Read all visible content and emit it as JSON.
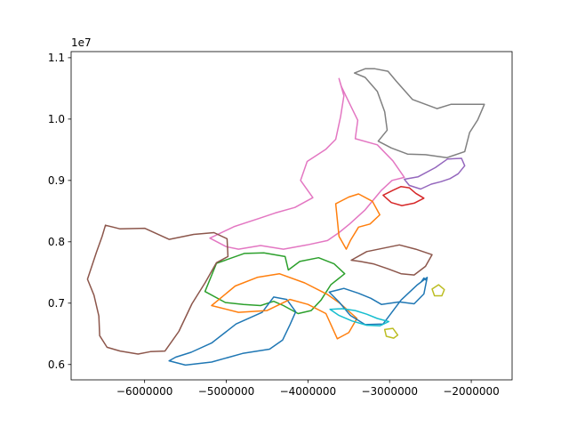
{
  "chart_data": {
    "type": "line",
    "title": "",
    "xlabel": "",
    "ylabel": "",
    "xlim": [
      -6900000,
      -1500000
    ],
    "ylim": [
      5750000,
      11100000
    ],
    "x_ticks": [
      -6000000,
      -5000000,
      -4000000,
      -3000000,
      -2000000
    ],
    "x_tick_labels": [
      "−6000000",
      "−5000000",
      "−4000000",
      "−3000000",
      "−2000000"
    ],
    "y_ticks": [
      6000000,
      7000000,
      8000000,
      9000000,
      10000000,
      11000000
    ],
    "y_tick_labels": [
      "0.6",
      "0.7",
      "0.8",
      "0.9",
      "1.0",
      "1.1"
    ],
    "y_offset_label": "1e7",
    "grid": false,
    "series": [
      {
        "color": "#808080",
        "x": [
          -3430000,
          -3300000,
          -3180000,
          -3020000,
          -2920000,
          -2820000,
          -2720000,
          -2600000,
          -2420000,
          -2250000,
          -1840000,
          -1920000,
          -2020000,
          -2080000,
          -2300000,
          -2560000,
          -2780000,
          -2980000,
          -3140000,
          -3030000,
          -3060000,
          -3150000,
          -3300000,
          -3430000
        ],
        "y": [
          10750000,
          10820000,
          10820000,
          10780000,
          10620000,
          10470000,
          10320000,
          10260000,
          10170000,
          10240000,
          10240000,
          9990000,
          9780000,
          9470000,
          9370000,
          9420000,
          9430000,
          9530000,
          9640000,
          9820000,
          10120000,
          10450000,
          10680000,
          10750000
        ]
      },
      {
        "color": "#e377c2",
        "x": [
          -3620000,
          -3560000,
          -3600000,
          -3660000,
          -3780000,
          -4010000,
          -4090000,
          -3940000,
          -4160000,
          -4400000,
          -4600000,
          -4900000,
          -5200000,
          -5000000,
          -4850000,
          -4580000,
          -4300000,
          -4010000,
          -3760000,
          -3620000,
          -3490000,
          -3300000,
          -3100000,
          -2970000,
          -2820000,
          -2960000,
          -3150000,
          -3420000,
          -3390000,
          -3500000,
          -3590000,
          -3620000
        ],
        "y": [
          10660000,
          10380000,
          10040000,
          9670000,
          9510000,
          9310000,
          9000000,
          8720000,
          8560000,
          8470000,
          8380000,
          8250000,
          8060000,
          7920000,
          7880000,
          7940000,
          7880000,
          7950000,
          8020000,
          8150000,
          8290000,
          8520000,
          8840000,
          9000000,
          9050000,
          9320000,
          9580000,
          9680000,
          9980000,
          10280000,
          10530000,
          10660000
        ]
      },
      {
        "color": "#9467bd",
        "x": [
          -2820000,
          -2760000,
          -2620000,
          -2490000,
          -2370000,
          -2260000,
          -2160000,
          -2080000,
          -2120000,
          -2290000,
          -2440000,
          -2650000,
          -2820000
        ],
        "y": [
          9020000,
          8920000,
          8860000,
          8940000,
          8980000,
          9030000,
          9110000,
          9240000,
          9360000,
          9350000,
          9210000,
          9060000,
          9020000
        ]
      },
      {
        "color": "#d62728",
        "x": [
          -3080000,
          -2960000,
          -2860000,
          -2760000,
          -2680000,
          -2580000,
          -2700000,
          -2850000,
          -2980000,
          -3080000
        ],
        "y": [
          8760000,
          8840000,
          8900000,
          8880000,
          8790000,
          8710000,
          8630000,
          8590000,
          8640000,
          8760000
        ]
      },
      {
        "color": "#ff7f0e",
        "x": [
          -3660000,
          -3500000,
          -3380000,
          -3210000,
          -3120000,
          -3240000,
          -3380000,
          -3480000,
          -3530000,
          -3620000,
          -3660000
        ],
        "y": [
          8620000,
          8730000,
          8780000,
          8660000,
          8440000,
          8290000,
          8240000,
          8020000,
          7880000,
          8090000,
          8620000
        ]
      },
      {
        "color": "#2ca02c",
        "x": [
          -5120000,
          -4780000,
          -4540000,
          -4280000,
          -4240000,
          -4100000,
          -3870000,
          -3680000,
          -3550000,
          -3720000,
          -3840000,
          -3960000,
          -4120000,
          -4300000,
          -4420000,
          -4580000,
          -4790000,
          -5010000,
          -5260000,
          -5120000
        ],
        "y": [
          7650000,
          7810000,
          7820000,
          7760000,
          7540000,
          7680000,
          7740000,
          7640000,
          7480000,
          7300000,
          7050000,
          6880000,
          6830000,
          6960000,
          7030000,
          6960000,
          6980000,
          7010000,
          7190000,
          7650000
        ]
      },
      {
        "color": "#1f77b4",
        "x": [
          -5700000,
          -5500000,
          -5180000,
          -4800000,
          -4470000,
          -4310000,
          -4220000,
          -4150000,
          -4260000,
          -4420000,
          -4560000,
          -4880000,
          -5180000,
          -5430000,
          -5620000,
          -5700000
        ],
        "y": [
          6060000,
          5990000,
          6040000,
          6180000,
          6250000,
          6400000,
          6650000,
          6860000,
          7060000,
          7100000,
          6850000,
          6660000,
          6350000,
          6200000,
          6120000,
          6060000
        ]
      },
      {
        "color": "#ff7f0e",
        "x": [
          -5180000,
          -4850000,
          -4500000,
          -4220000,
          -4000000,
          -3780000,
          -3640000,
          -3500000,
          -3400000,
          -3600000,
          -3760000,
          -4040000,
          -4350000,
          -4620000,
          -4890000,
          -5180000
        ],
        "y": [
          6960000,
          6850000,
          6880000,
          7060000,
          6980000,
          6830000,
          6420000,
          6520000,
          6750000,
          6990000,
          7140000,
          7330000,
          7480000,
          7420000,
          7280000,
          6960000
        ]
      },
      {
        "color": "#1f77b4",
        "x": [
          -3740000,
          -3560000,
          -3380000,
          -3230000,
          -3100000,
          -2880000,
          -2700000,
          -2580000,
          -2540000,
          -2660000,
          -2860000,
          -3080000,
          -3300000,
          -3480000,
          -3620000,
          -3740000
        ],
        "y": [
          7180000,
          7240000,
          7160000,
          7080000,
          6980000,
          7020000,
          6990000,
          7150000,
          7420000,
          7300000,
          7050000,
          6660000,
          6650000,
          6800000,
          7020000,
          7180000
        ]
      },
      {
        "color": "#17becf",
        "x": [
          -3730000,
          -3580000,
          -3420000,
          -3280000,
          -3150000,
          -3010000,
          -3120000,
          -3280000,
          -3460000,
          -3620000,
          -3730000
        ],
        "y": [
          6900000,
          6910000,
          6880000,
          6820000,
          6750000,
          6700000,
          6630000,
          6640000,
          6710000,
          6800000,
          6900000
        ]
      },
      {
        "color": "#8c564b",
        "x": [
          -6480000,
          -6300000,
          -6000000,
          -5700000,
          -5400000,
          -5150000,
          -4990000,
          -4980000,
          -5120000,
          -5260000,
          -5420000,
          -5580000,
          -5750000,
          -5930000,
          -6080000,
          -6300000,
          -6460000,
          -6550000,
          -6560000,
          -6620000,
          -6700000,
          -6590000,
          -6520000,
          -6480000
        ],
        "y": [
          8270000,
          8210000,
          8220000,
          8040000,
          8120000,
          8150000,
          8050000,
          7760000,
          7660000,
          7330000,
          6990000,
          6540000,
          6220000,
          6210000,
          6170000,
          6220000,
          6280000,
          6470000,
          6790000,
          7130000,
          7390000,
          7830000,
          8090000,
          8270000
        ]
      },
      {
        "color": "#8c564b",
        "x": [
          -3470000,
          -3280000,
          -3060000,
          -2880000,
          -2680000,
          -2480000,
          -2560000,
          -2700000,
          -2860000,
          -3020000,
          -3200000,
          -3360000,
          -3470000
        ],
        "y": [
          7700000,
          7840000,
          7900000,
          7950000,
          7880000,
          7790000,
          7600000,
          7460000,
          7480000,
          7560000,
          7640000,
          7680000,
          7700000
        ]
      },
      {
        "color": "#bcbd22",
        "x": [
          -3060000,
          -2960000,
          -2900000,
          -2950000,
          -3040000,
          -3060000
        ],
        "y": [
          6570000,
          6590000,
          6480000,
          6430000,
          6460000,
          6570000
        ]
      },
      {
        "color": "#bcbd22",
        "x": [
          -2480000,
          -2400000,
          -2330000,
          -2360000,
          -2450000,
          -2480000
        ],
        "y": [
          7230000,
          7300000,
          7220000,
          7120000,
          7120000,
          7230000
        ]
      },
      {
        "color": "#1f77b4",
        "x": [
          -2610000,
          -2580000,
          -2550000
        ],
        "y": [
          7350000,
          7410000,
          7370000
        ]
      }
    ]
  }
}
